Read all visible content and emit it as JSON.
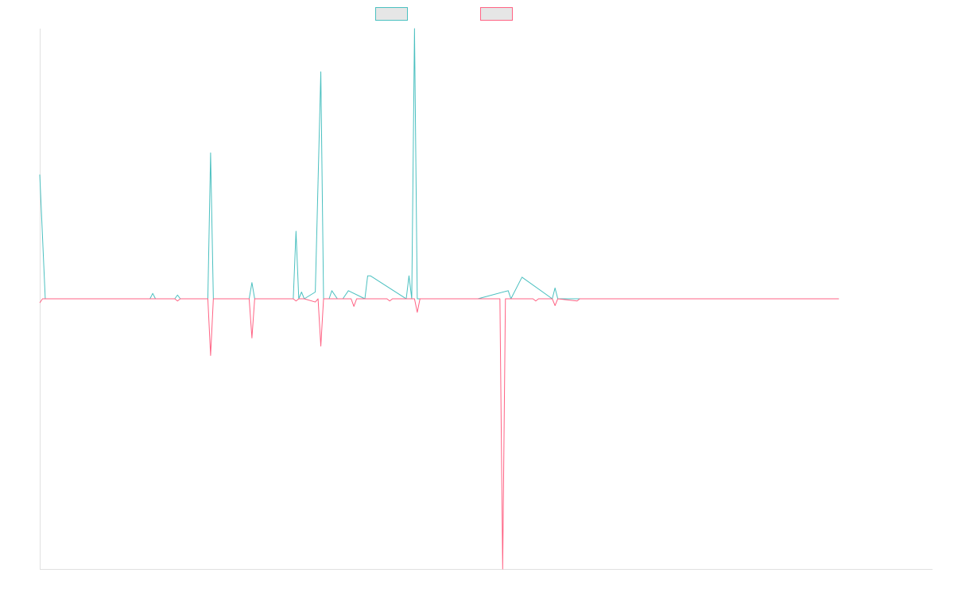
{
  "chart_data": {
    "type": "line",
    "title": "",
    "xlabel": "",
    "ylabel": "",
    "ylim": [
      -1,
      1
    ],
    "xlim": [
      0,
      324
    ],
    "grid": false,
    "legend": "top-center",
    "series": [
      {
        "color": "#4bc0c0",
        "fill": "#e6e6e6",
        "x": [
          0,
          1,
          2,
          30,
          31,
          40,
          41,
          42,
          49,
          50,
          51,
          61,
          62,
          63,
          76,
          77,
          78,
          92,
          93,
          94,
          95,
          96,
          100,
          102,
          103,
          105,
          106,
          108,
          110,
          112,
          118,
          119,
          120,
          133,
          134,
          135,
          136,
          137,
          146,
          152,
          159,
          170,
          171,
          175,
          186,
          187,
          188,
          195,
          196,
          289,
          290
        ],
        "values": [
          0.46,
          0.23,
          0.0,
          0.0,
          0.0,
          0.0,
          0.02,
          0.0,
          0.0,
          0.014,
          0.0,
          0.0,
          0.54,
          0.0,
          0.0,
          0.06,
          0.0,
          0.0,
          0.25,
          0.0,
          0.025,
          0.0,
          0.025,
          0.84,
          0.0,
          0.0,
          0.03,
          0.0,
          0.0,
          0.03,
          0.0,
          0.085,
          0.085,
          0.0,
          0.085,
          0.0,
          1.0,
          0.0,
          0.0,
          0.0,
          0.0,
          0.03,
          0.0,
          0.08,
          0.0,
          0.04,
          0.0,
          0.0,
          0.0,
          0.0,
          0.0
        ]
      },
      {
        "color": "#ff6384",
        "fill": "#e6e6e6",
        "x": [
          0,
          1,
          2,
          49,
          50,
          51,
          61,
          62,
          63,
          76,
          77,
          78,
          92,
          93,
          94,
          95,
          96,
          100,
          101,
          102,
          103,
          113,
          114,
          115,
          126,
          127,
          128,
          136,
          137,
          138,
          145,
          167,
          168,
          169,
          175,
          179,
          180,
          181,
          186,
          187,
          188,
          195,
          196,
          289,
          290
        ],
        "values": [
          -0.015,
          0.0,
          0.0,
          0.0,
          -0.008,
          0.0,
          0.0,
          -0.21,
          0.0,
          0.0,
          -0.145,
          0.0,
          0.0,
          -0.008,
          0.0,
          0.0,
          0.0,
          -0.012,
          0.0,
          -0.175,
          0.0,
          0.0,
          -0.028,
          0.0,
          0.0,
          -0.008,
          0.0,
          0.0,
          -0.05,
          0.0,
          0.0,
          0.0,
          -1.0,
          0.0,
          0.0,
          0.0,
          -0.008,
          0.0,
          0.0,
          -0.025,
          0.0,
          -0.008,
          0.0,
          0.0,
          0.0
        ]
      }
    ]
  }
}
